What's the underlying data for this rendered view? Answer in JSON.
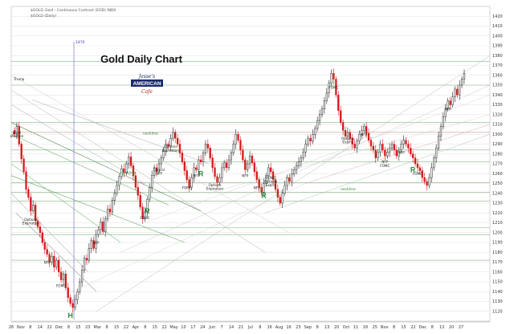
{
  "header": {
    "symbol": "$GOLD",
    "description": "Gold - Continuous Contract (EOD) INDX",
    "sub": "$GOLD (Daily)"
  },
  "logo": {
    "line1": "Jesse's",
    "line2": "AMERICAN",
    "line3": "Cafe"
  },
  "chart_data": {
    "type": "candlestick",
    "title": "Gold Daily Chart",
    "ylim": [
      1110,
      1430
    ],
    "y_ticks": [
      1120,
      1130,
      1140,
      1150,
      1160,
      1170,
      1180,
      1190,
      1200,
      1210,
      1220,
      1230,
      1240,
      1250,
      1260,
      1270,
      1280,
      1290,
      1300,
      1310,
      1320,
      1330,
      1340,
      1350,
      1360,
      1370,
      1380,
      1390,
      1400,
      1410,
      1420
    ],
    "x_ticks": [
      "26",
      "Nov",
      "8",
      "14",
      "22",
      "Dec",
      "8",
      "15",
      "23",
      "Mar",
      "8",
      "15",
      "22",
      "Apr",
      "8",
      "15",
      "22",
      "May",
      "10",
      "17",
      "24",
      "Jun",
      "7",
      "14",
      "21",
      "Jul",
      "8",
      "16",
      "Aug",
      "16",
      "23",
      "Sep",
      "8",
      "13",
      "20",
      "Oct",
      "11",
      "18",
      "25",
      "Nov",
      "8",
      "15",
      "22",
      "Dec",
      "8",
      "13",
      "20",
      "27"
    ],
    "closes": [
      1300,
      1308,
      1290,
      1275,
      1262,
      1244,
      1236,
      1222,
      1228,
      1212,
      1206,
      1200,
      1190,
      1183,
      1178,
      1170,
      1176,
      1165,
      1172,
      1160,
      1152,
      1158,
      1144,
      1134,
      1128,
      1124,
      1132,
      1140,
      1150,
      1162,
      1174,
      1172,
      1184,
      1192,
      1184,
      1198,
      1203,
      1211,
      1201,
      1214,
      1224,
      1221,
      1233,
      1240,
      1248,
      1257,
      1265,
      1261,
      1270,
      1277,
      1268,
      1258,
      1246,
      1238,
      1226,
      1214,
      1221,
      1234,
      1246,
      1258,
      1266,
      1262,
      1270,
      1276,
      1283,
      1290,
      1288,
      1296,
      1302,
      1296,
      1290,
      1281,
      1272,
      1263,
      1254,
      1246,
      1256,
      1266,
      1264,
      1274,
      1272,
      1281,
      1290,
      1286,
      1276,
      1266,
      1257,
      1251,
      1256,
      1266,
      1271,
      1266,
      1274,
      1281,
      1290,
      1300,
      1294,
      1284,
      1274,
      1264,
      1270,
      1278,
      1271,
      1262,
      1254,
      1246,
      1241,
      1250,
      1258,
      1266,
      1262,
      1254,
      1244,
      1236,
      1230,
      1240,
      1248,
      1256,
      1252,
      1260,
      1264,
      1268,
      1272,
      1276,
      1282,
      1290,
      1296,
      1293,
      1300,
      1306,
      1314,
      1320,
      1326,
      1334,
      1342,
      1352,
      1362,
      1356,
      1340,
      1324,
      1312,
      1304,
      1298,
      1302,
      1296,
      1290,
      1286,
      1293,
      1300,
      1304,
      1308,
      1301,
      1294,
      1288,
      1284,
      1276,
      1282,
      1290,
      1284,
      1278,
      1282,
      1286,
      1290,
      1284,
      1278,
      1284,
      1290,
      1294,
      1290,
      1286,
      1280,
      1276,
      1270,
      1266,
      1263,
      1256,
      1252,
      1248,
      1256,
      1266,
      1276,
      1286,
      1298,
      1308,
      1318,
      1326,
      1334,
      1330,
      1338,
      1346,
      1340,
      1350,
      1356,
      1362
    ],
    "spike_index": 143,
    "markers": [
      {
        "label": "R",
        "at": 57
      },
      {
        "label": "R",
        "at": 80
      },
      {
        "label": "R",
        "at": 107
      },
      {
        "label": "R",
        "at": 171
      },
      {
        "label": "H",
        "at": 24
      }
    ],
    "annotations": [
      {
        "lines": [
          "Trump"
        ],
        "at": 2
      },
      {
        "lines": [
          "Options",
          "Expiration"
        ],
        "at": 7
      },
      {
        "lines": [
          "pivot",
          "election"
        ],
        "at": 1
      },
      {
        "lines": [
          "NFP"
        ],
        "at": 14
      },
      {
        "lines": [
          "FOMC"
        ],
        "at": 20
      },
      {
        "lines": [
          "NFP"
        ],
        "at": 35
      },
      {
        "lines": [
          "FOMC"
        ],
        "at": 56
      },
      {
        "lines": [
          "Options",
          "Expiration"
        ],
        "at": 67
      },
      {
        "lines": [
          "Cancel",
          "NFP"
        ],
        "at": 62
      },
      {
        "lines": [
          "FOMC"
        ],
        "at": 74
      },
      {
        "lines": [
          "NFP"
        ],
        "at": 78
      },
      {
        "lines": [
          "Options",
          "Expiration"
        ],
        "at": 86
      },
      {
        "lines": [
          "NFP"
        ],
        "at": 99
      },
      {
        "lines": [
          "NFP"
        ],
        "at": 104
      },
      {
        "lines": [
          "FOMC",
          "Options",
          "Expiry"
        ],
        "at": 110
      },
      {
        "lines": [
          "FOMC"
        ],
        "at": 137
      },
      {
        "lines": [
          "Options",
          "Expiry"
        ],
        "at": 143
      },
      {
        "lines": [
          "NFP"
        ],
        "at": 150
      },
      {
        "lines": [
          "NFP",
          "FOMC"
        ],
        "at": 159
      },
      {
        "lines": [
          "NFP"
        ],
        "at": 166
      },
      {
        "lines": [
          "FOMC"
        ],
        "at": 173
      },
      {
        "lines": [
          "NFP"
        ],
        "at": 186
      }
    ],
    "necklines": [
      "neckline",
      "neckline",
      "neckline"
    ],
    "vertical_marker": "1470",
    "grid": true
  }
}
